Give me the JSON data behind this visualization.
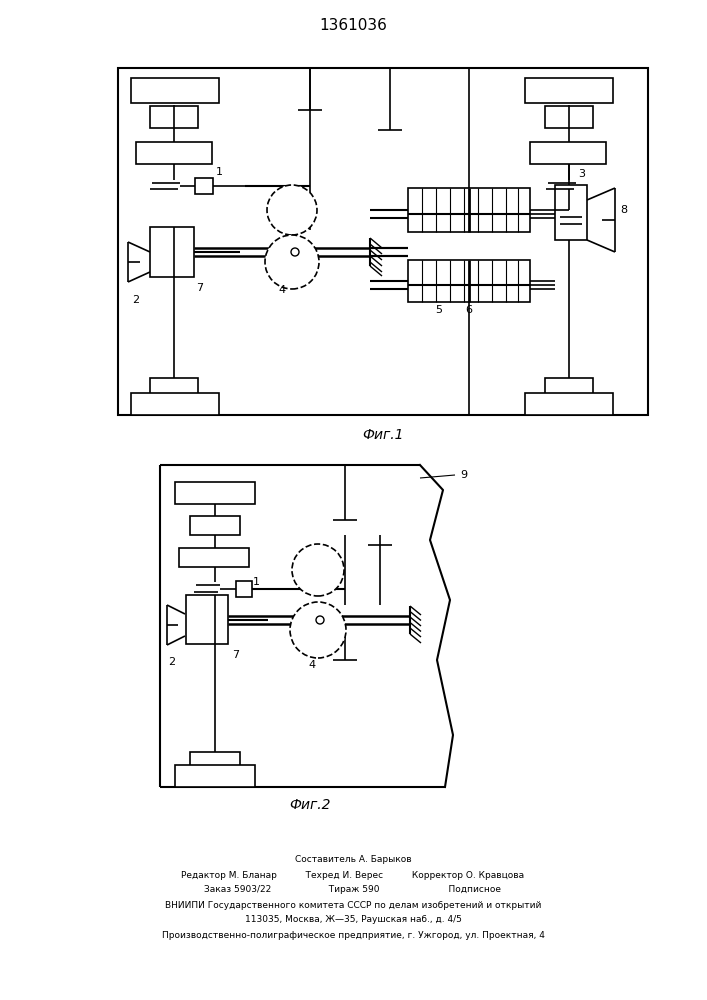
{
  "title": "1361036",
  "fig1_label": "Фиг.1",
  "fig2_label": "Фиг.2",
  "bg_color": "#ffffff",
  "line_color": "#000000",
  "footer_lines": [
    "Составитель А. Барыков",
    "Редактор М. Бланар          Техред И. Верес          Корректор О. Кравцова",
    "Заказ 5903/22                    Тираж 590                        Подписное",
    "ВНИИПИ Государственного комитета СССР по делам изобретений и открытий",
    "113035, Москва, Ж—35, Раушская наб., д. 4/5",
    "Производственно-полиграфическое предприятие, г. Ужгород, ул. Проектная, 4"
  ]
}
